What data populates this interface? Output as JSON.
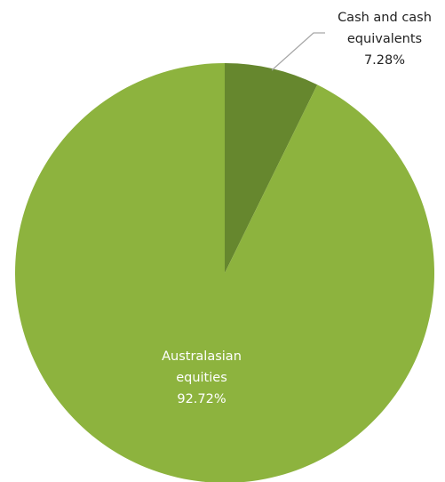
{
  "chart_data": {
    "type": "pie",
    "slices": [
      {
        "label_line1": "Cash and cash",
        "label_line2": "equivalents",
        "value_text": "7.28%",
        "value": 7.28,
        "color": "#66872e"
      },
      {
        "label_line1": "Australasian",
        "label_line2": "equities",
        "value_text": "92.72%",
        "value": 92.72,
        "color": "#8db33e"
      }
    ],
    "label_colors": {
      "outside": "#222222",
      "inside": "#ffffff"
    },
    "leader_color": "#a6a6a6",
    "legend": "none"
  }
}
